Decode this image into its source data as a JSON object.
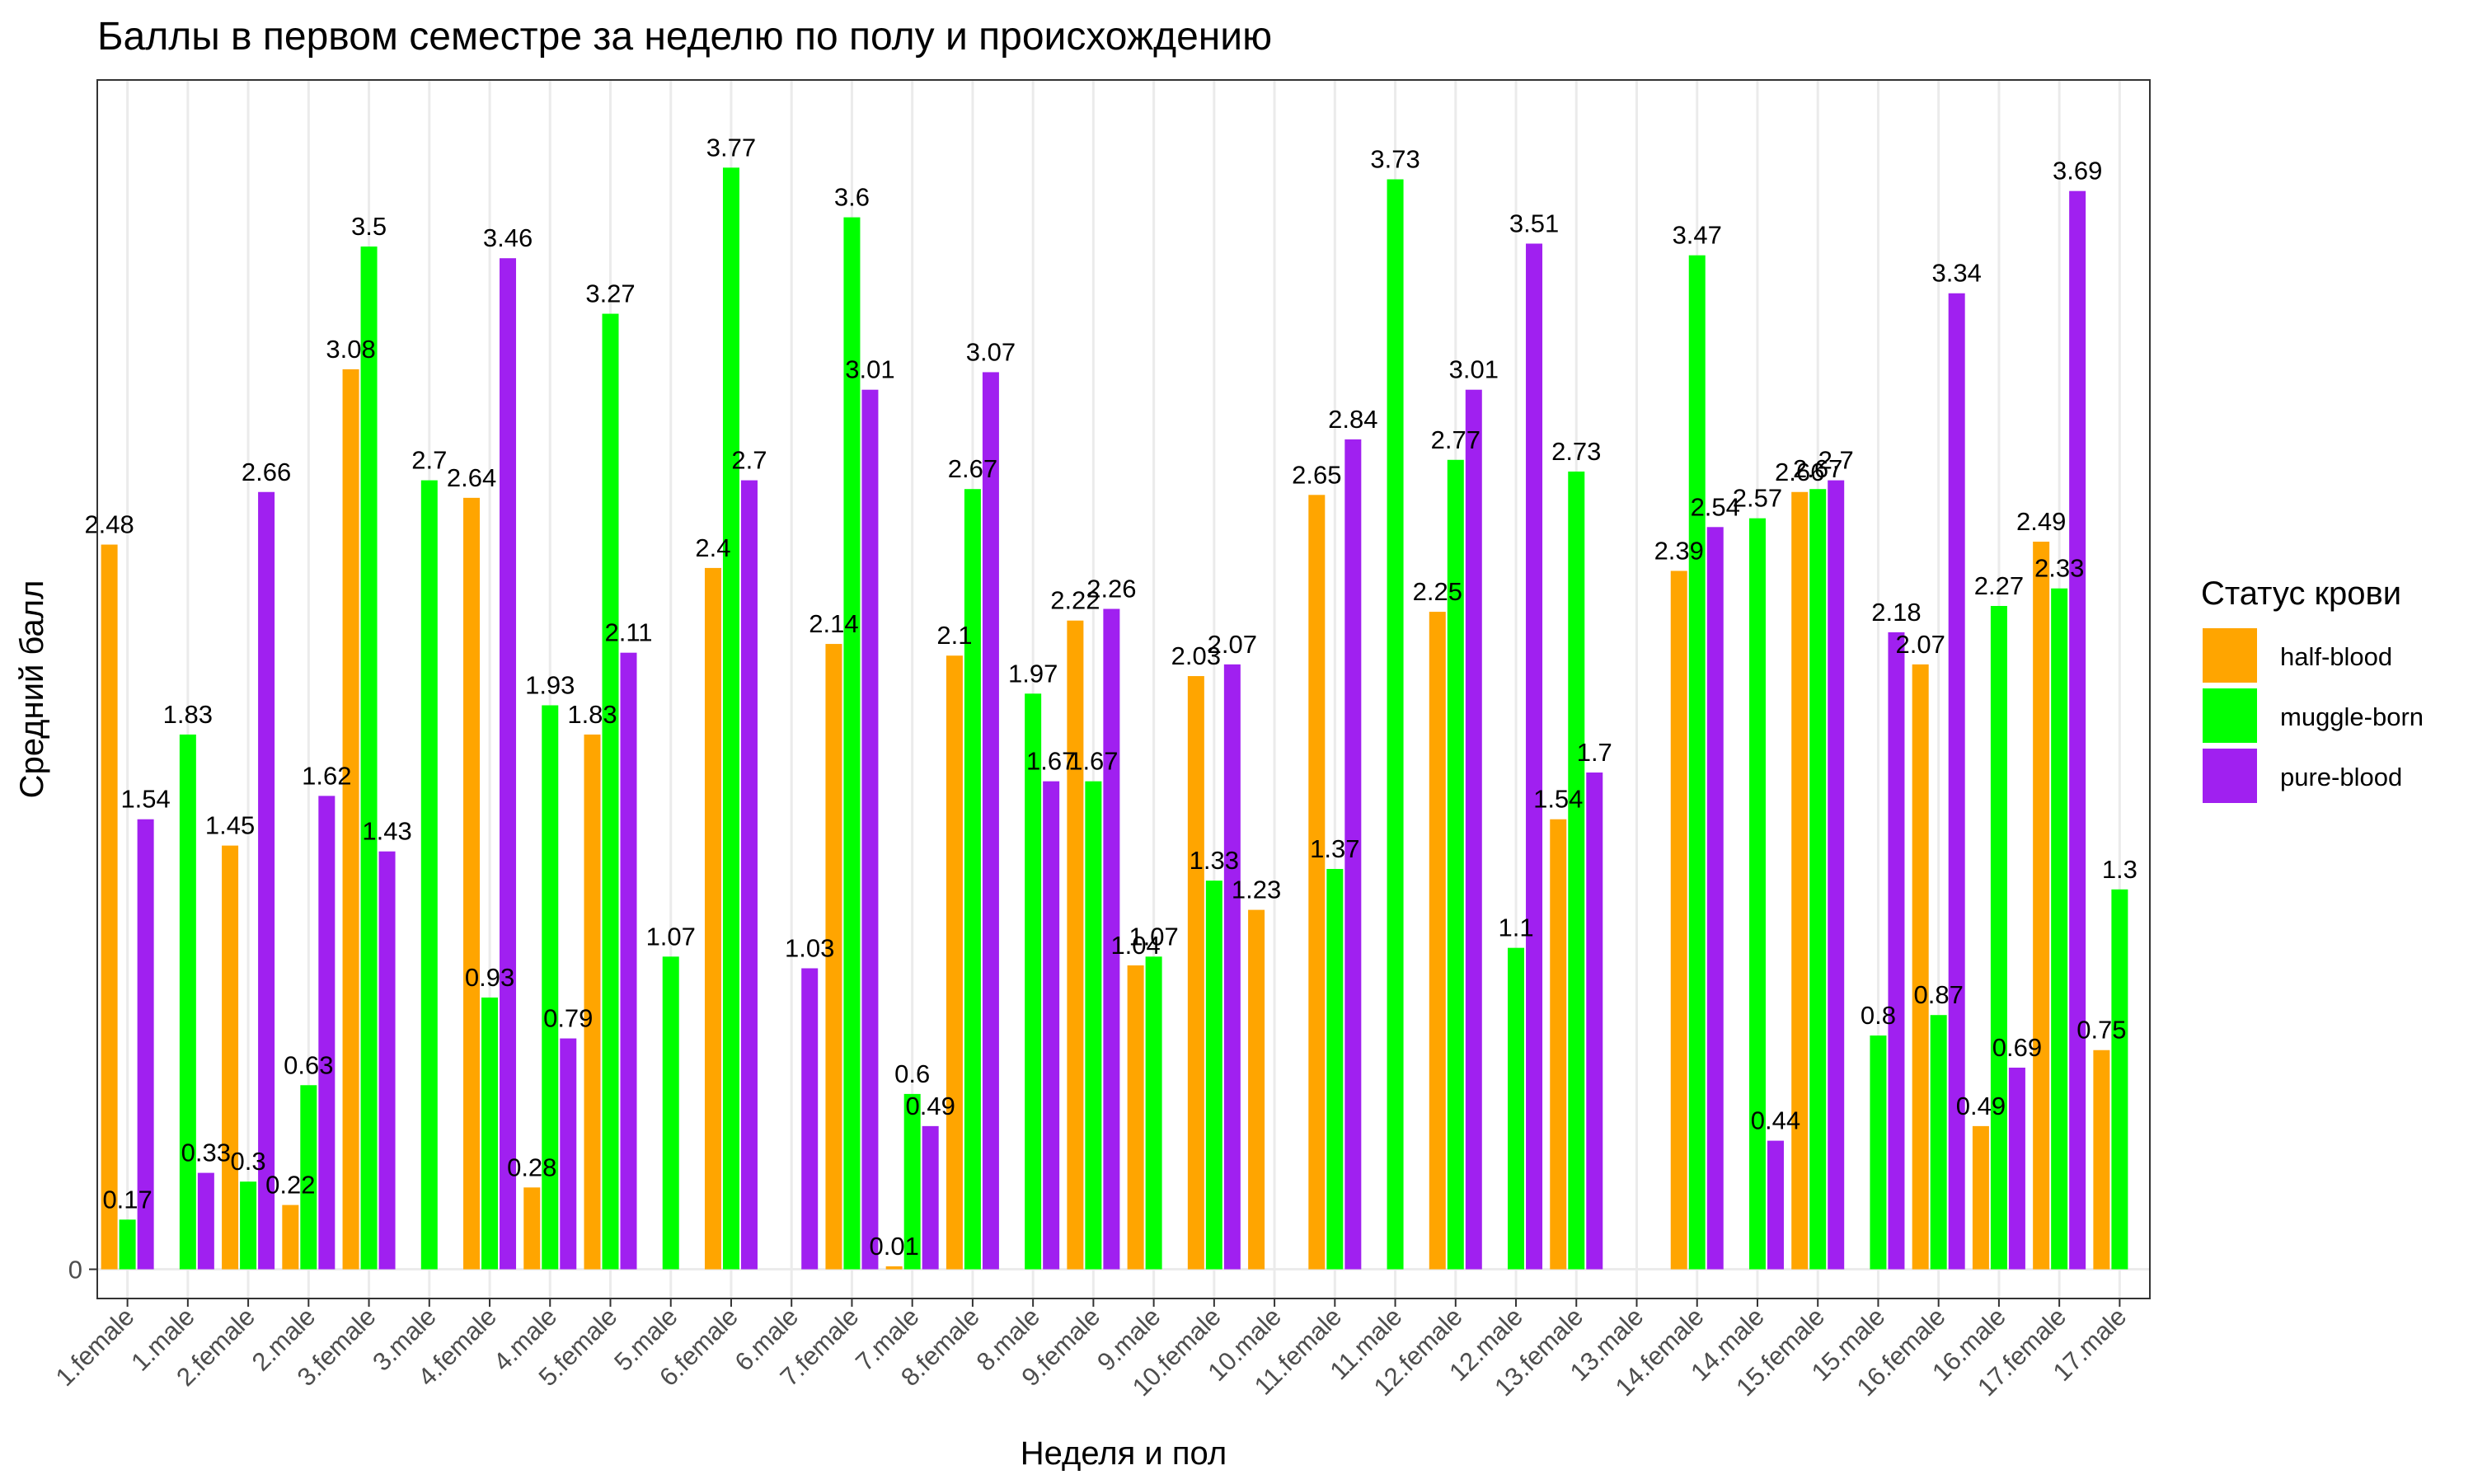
{
  "chart_data": {
    "type": "bar",
    "title": "Баллы в первом семестре за неделю по полу и происхождению",
    "xlabel": "Неделя и пол",
    "ylabel": "Средний балл",
    "y_ticks": [
      "0"
    ],
    "ylim": [
      -0.1,
      4.07
    ],
    "grid": true,
    "legend": {
      "title": "Статус крови",
      "position": "right"
    },
    "categories": [
      "1.female",
      "1.male",
      "2.female",
      "2.male",
      "3.female",
      "3.male",
      "4.female",
      "4.male",
      "5.female",
      "5.male",
      "6.female",
      "6.male",
      "7.female",
      "7.male",
      "8.female",
      "8.male",
      "9.female",
      "9.male",
      "10.female",
      "10.male",
      "11.female",
      "11.male",
      "12.female",
      "12.male",
      "13.female",
      "13.male",
      "14.female",
      "14.male",
      "15.female",
      "15.male",
      "16.female",
      "16.male",
      "17.female",
      "17.male"
    ],
    "series": [
      {
        "name": "half-blood",
        "color": "#FFA500",
        "values": [
          2.48,
          null,
          1.45,
          0.22,
          3.08,
          null,
          2.64,
          0.28,
          1.83,
          null,
          2.4,
          null,
          2.14,
          0.01,
          2.1,
          null,
          2.22,
          1.04,
          2.03,
          1.23,
          2.65,
          null,
          2.25,
          null,
          1.54,
          null,
          2.39,
          null,
          2.66,
          null,
          2.07,
          0.49,
          2.49,
          0.75
        ]
      },
      {
        "name": "muggle-born",
        "color": "#00FF00",
        "values": [
          0.17,
          1.83,
          0.3,
          0.63,
          3.5,
          2.7,
          0.93,
          1.93,
          3.27,
          1.07,
          3.77,
          null,
          3.6,
          0.6,
          2.67,
          1.97,
          1.67,
          1.07,
          1.33,
          null,
          1.37,
          3.73,
          2.77,
          1.1,
          2.73,
          null,
          3.47,
          2.57,
          2.67,
          0.8,
          0.87,
          2.27,
          2.33,
          1.3
        ]
      },
      {
        "name": "pure-blood",
        "color": "#A020F0",
        "values": [
          1.54,
          0.33,
          2.66,
          1.62,
          1.43,
          null,
          3.46,
          0.79,
          2.11,
          null,
          2.7,
          1.03,
          3.01,
          0.49,
          3.07,
          1.67,
          2.26,
          null,
          2.07,
          null,
          2.84,
          null,
          3.01,
          3.51,
          1.7,
          null,
          2.54,
          0.44,
          2.7,
          2.18,
          3.34,
          0.69,
          3.69,
          null
        ]
      }
    ]
  }
}
